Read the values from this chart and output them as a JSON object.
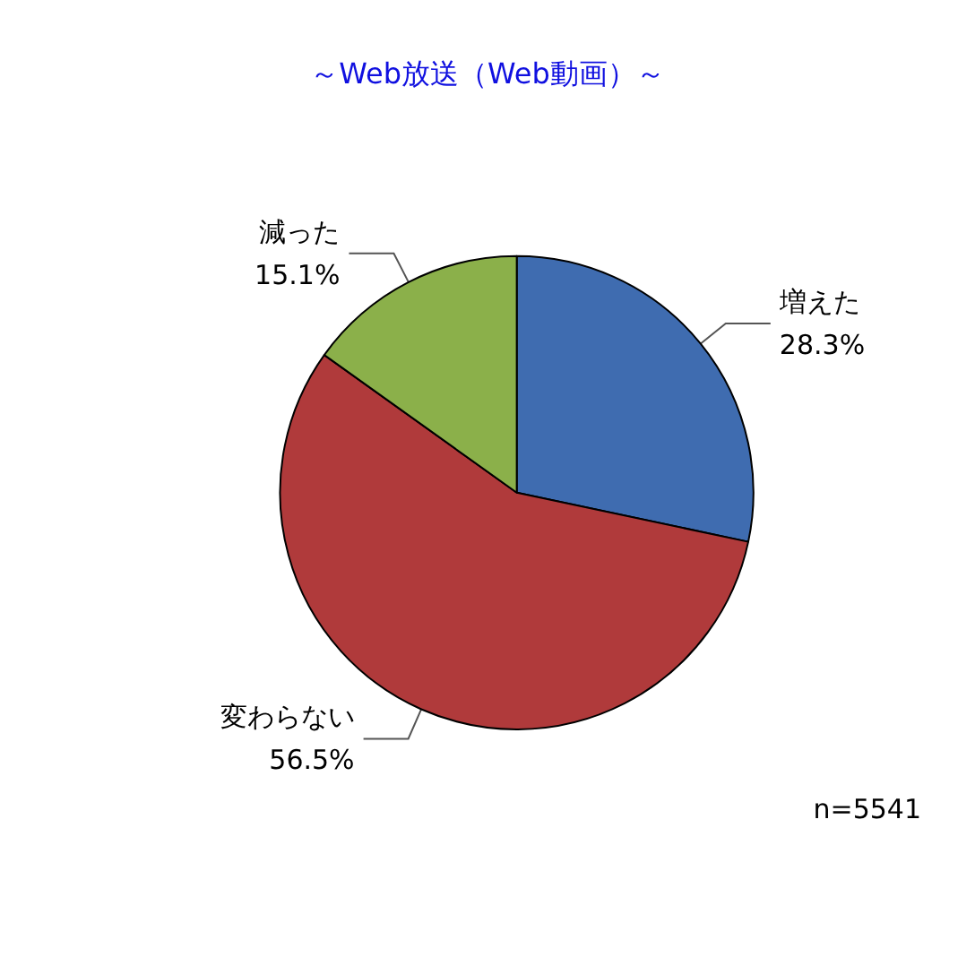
{
  "chart_data": {
    "type": "pie",
    "title": "～Web放送（Web動画）～",
    "categories": [
      "増えた",
      "変わらない",
      "減った"
    ],
    "values": [
      28.3,
      56.5,
      15.1
    ],
    "colors": [
      "#3f6cb0",
      "#b03a3b",
      "#8bb04a"
    ],
    "value_labels": [
      "28.3%",
      "56.5%",
      "15.1%"
    ],
    "legend": false,
    "annotations": [
      "n=5541"
    ]
  }
}
